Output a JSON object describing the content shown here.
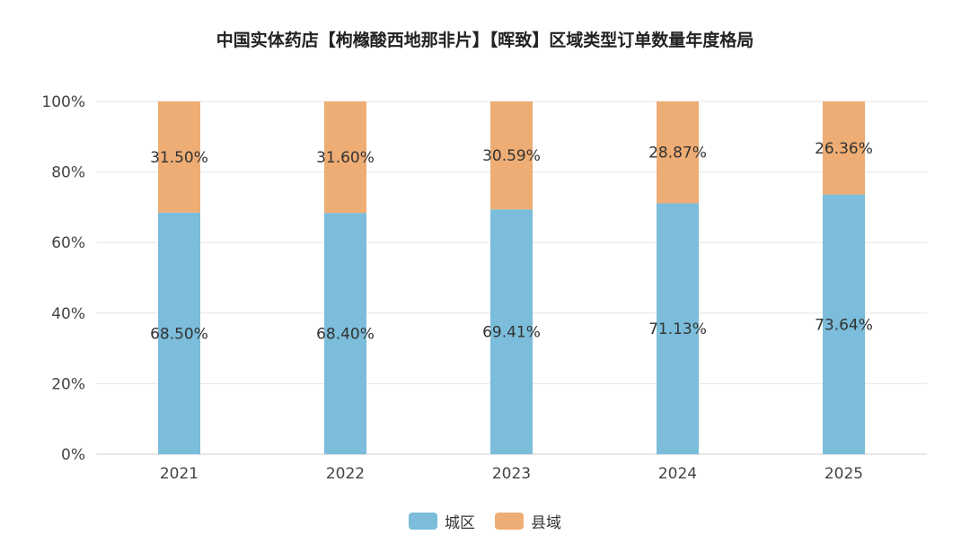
{
  "chart_data": {
    "type": "bar",
    "stacked": true,
    "title": "中国实体药店【枸橼酸西地那非片】【晖致】区域类型订单数量年度格局",
    "categories": [
      "2021",
      "2022",
      "2023",
      "2024",
      "2025"
    ],
    "series": [
      {
        "name": "城区",
        "color": "#7BBDDA",
        "values": [
          68.5,
          68.4,
          69.41,
          71.13,
          73.64
        ],
        "labels": [
          "68.50%",
          "68.40%",
          "69.41%",
          "71.13%",
          "73.64%"
        ]
      },
      {
        "name": "县域",
        "color": "#EEAD74",
        "values": [
          31.5,
          31.6,
          30.59,
          28.87,
          26.36
        ],
        "labels": [
          "31.50%",
          "31.60%",
          "30.59%",
          "28.87%",
          "26.36%"
        ]
      }
    ],
    "ylim": [
      0,
      100
    ],
    "yticks": [
      "0%",
      "20%",
      "40%",
      "60%",
      "80%",
      "100%"
    ],
    "grid": true,
    "legend_position": "bottom-center"
  }
}
